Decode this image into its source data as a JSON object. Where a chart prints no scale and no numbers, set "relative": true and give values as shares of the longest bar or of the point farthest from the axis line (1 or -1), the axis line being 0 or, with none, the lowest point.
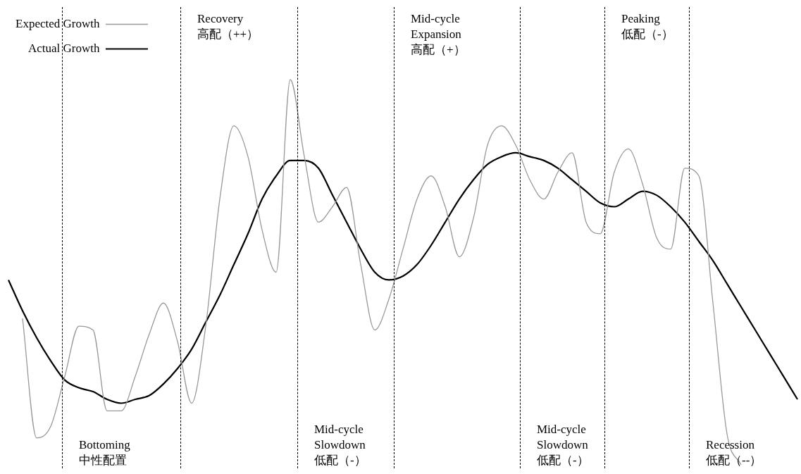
{
  "chart_data": {
    "type": "line",
    "relative": true,
    "legend": "top left",
    "tick_labels": false,
    "marker": "none",
    "categories": [
      null,
      null,
      null,
      null,
      null,
      null,
      null,
      null,
      null,
      null,
      null,
      null,
      null,
      null,
      null,
      null,
      null,
      null,
      null,
      null,
      null,
      null,
      null,
      null,
      null,
      null,
      null,
      null,
      null,
      null,
      null,
      null,
      null,
      null,
      null,
      null,
      null,
      null,
      null,
      null,
      null,
      null,
      null,
      null,
      null,
      null,
      null,
      null,
      null,
      null,
      null,
      null,
      null,
      null,
      null,
      null,
      null
    ],
    "series": [
      {
        "name": "Actual Growth",
        "color": "#000000",
        "values": [
          0.48,
          0.4,
          0.33,
          0.27,
          0.22,
          0.2,
          0.19,
          0.17,
          0.16,
          0.17,
          0.18,
          0.21,
          0.25,
          0.3,
          0.37,
          0.44,
          0.52,
          0.6,
          0.69,
          0.75,
          0.79,
          0.79,
          0.77,
          0.7,
          0.63,
          0.56,
          0.5,
          0.48,
          0.49,
          0.52,
          0.57,
          0.63,
          0.69,
          0.74,
          0.78,
          0.8,
          0.81,
          0.8,
          0.79,
          0.77,
          0.74,
          0.71,
          0.68,
          0.67,
          0.69,
          0.71,
          0.7,
          0.67,
          0.63,
          0.58,
          0.53,
          0.47,
          0.41,
          0.35,
          0.29,
          0.23,
          0.17
        ]
      },
      {
        "name": "Expected Growth",
        "color": "#999999",
        "values": [
          null,
          0.38,
          0.07,
          0.1,
          0.23,
          0.36,
          0.35,
          0.14,
          0.14,
          0.23,
          0.34,
          0.42,
          0.32,
          0.16,
          0.36,
          0.69,
          0.88,
          0.8,
          0.61,
          0.5,
          1,
          0.8,
          0.63,
          0.67,
          0.72,
          0.52,
          0.35,
          0.43,
          0.56,
          0.69,
          0.75,
          0.67,
          0.54,
          0.64,
          0.83,
          0.88,
          0.83,
          0.74,
          0.69,
          0.76,
          0.81,
          0.63,
          0.6,
          0.76,
          0.82,
          0.73,
          0.59,
          0.56,
          0.77,
          0.75,
          0.42,
          0.08,
          0,
          null,
          null,
          null,
          null
        ]
      }
    ],
    "annotations": [
      "Bottoming\n中性配置",
      "Recovery\n高配（++）",
      "Mid-cycle\nSlowdown\n低配（-）",
      "Mid-cycle\nExpansion\n高配（+）",
      "Mid-cycle\nSlowdown\n低配（-）",
      "Peaking\n低配（-）",
      "Recession\n低配（--）"
    ]
  }
}
